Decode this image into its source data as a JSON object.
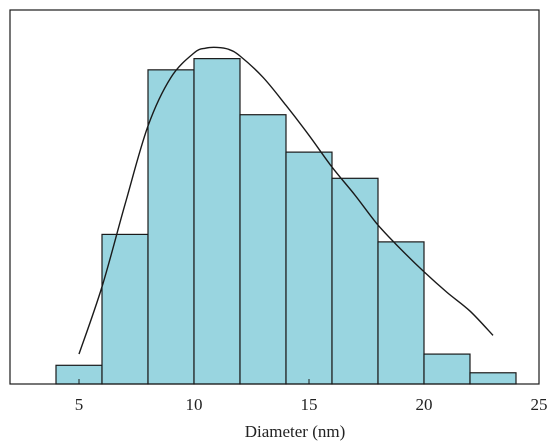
{
  "chart_data": {
    "type": "bar",
    "title": "",
    "xlabel": "Diameter (nm)",
    "ylabel": "",
    "xlim": [
      2,
      25
    ],
    "ylim": [
      0,
      100
    ],
    "x_ticks": [
      5,
      10,
      15,
      20,
      25
    ],
    "x_tick_labels": [
      "5",
      "10",
      "15",
      "20",
      "25"
    ],
    "grid": false,
    "legend": "none",
    "bins": [
      {
        "from": 4,
        "to": 6,
        "value": 5
      },
      {
        "from": 6,
        "to": 8,
        "value": 40
      },
      {
        "from": 8,
        "to": 10,
        "value": 84
      },
      {
        "from": 10,
        "to": 12,
        "value": 87
      },
      {
        "from": 12,
        "to": 14,
        "value": 72
      },
      {
        "from": 14,
        "to": 16,
        "value": 62
      },
      {
        "from": 16,
        "to": 18,
        "value": 55
      },
      {
        "from": 18,
        "to": 20,
        "value": 38
      },
      {
        "from": 20,
        "to": 22,
        "value": 8
      },
      {
        "from": 22,
        "to": 24,
        "value": 3
      }
    ],
    "fit_curve": {
      "x": [
        5,
        6,
        7,
        8,
        9,
        10,
        10.5,
        11,
        11.5,
        12,
        13,
        14,
        15,
        16,
        17,
        18,
        19,
        20,
        21,
        22,
        23
      ],
      "y": [
        8,
        26,
        48,
        69,
        82,
        88.5,
        89.8,
        90,
        89.5,
        87.7,
        82,
        74.5,
        66.5,
        58,
        50.5,
        42.5,
        36,
        30,
        24.5,
        19.5,
        13
      ]
    },
    "colors": {
      "bar_fill": "#99d5e0",
      "bar_stroke": "#1a1a1a",
      "curve": "#1a1a1a",
      "axis": "#1a1a1a"
    }
  }
}
